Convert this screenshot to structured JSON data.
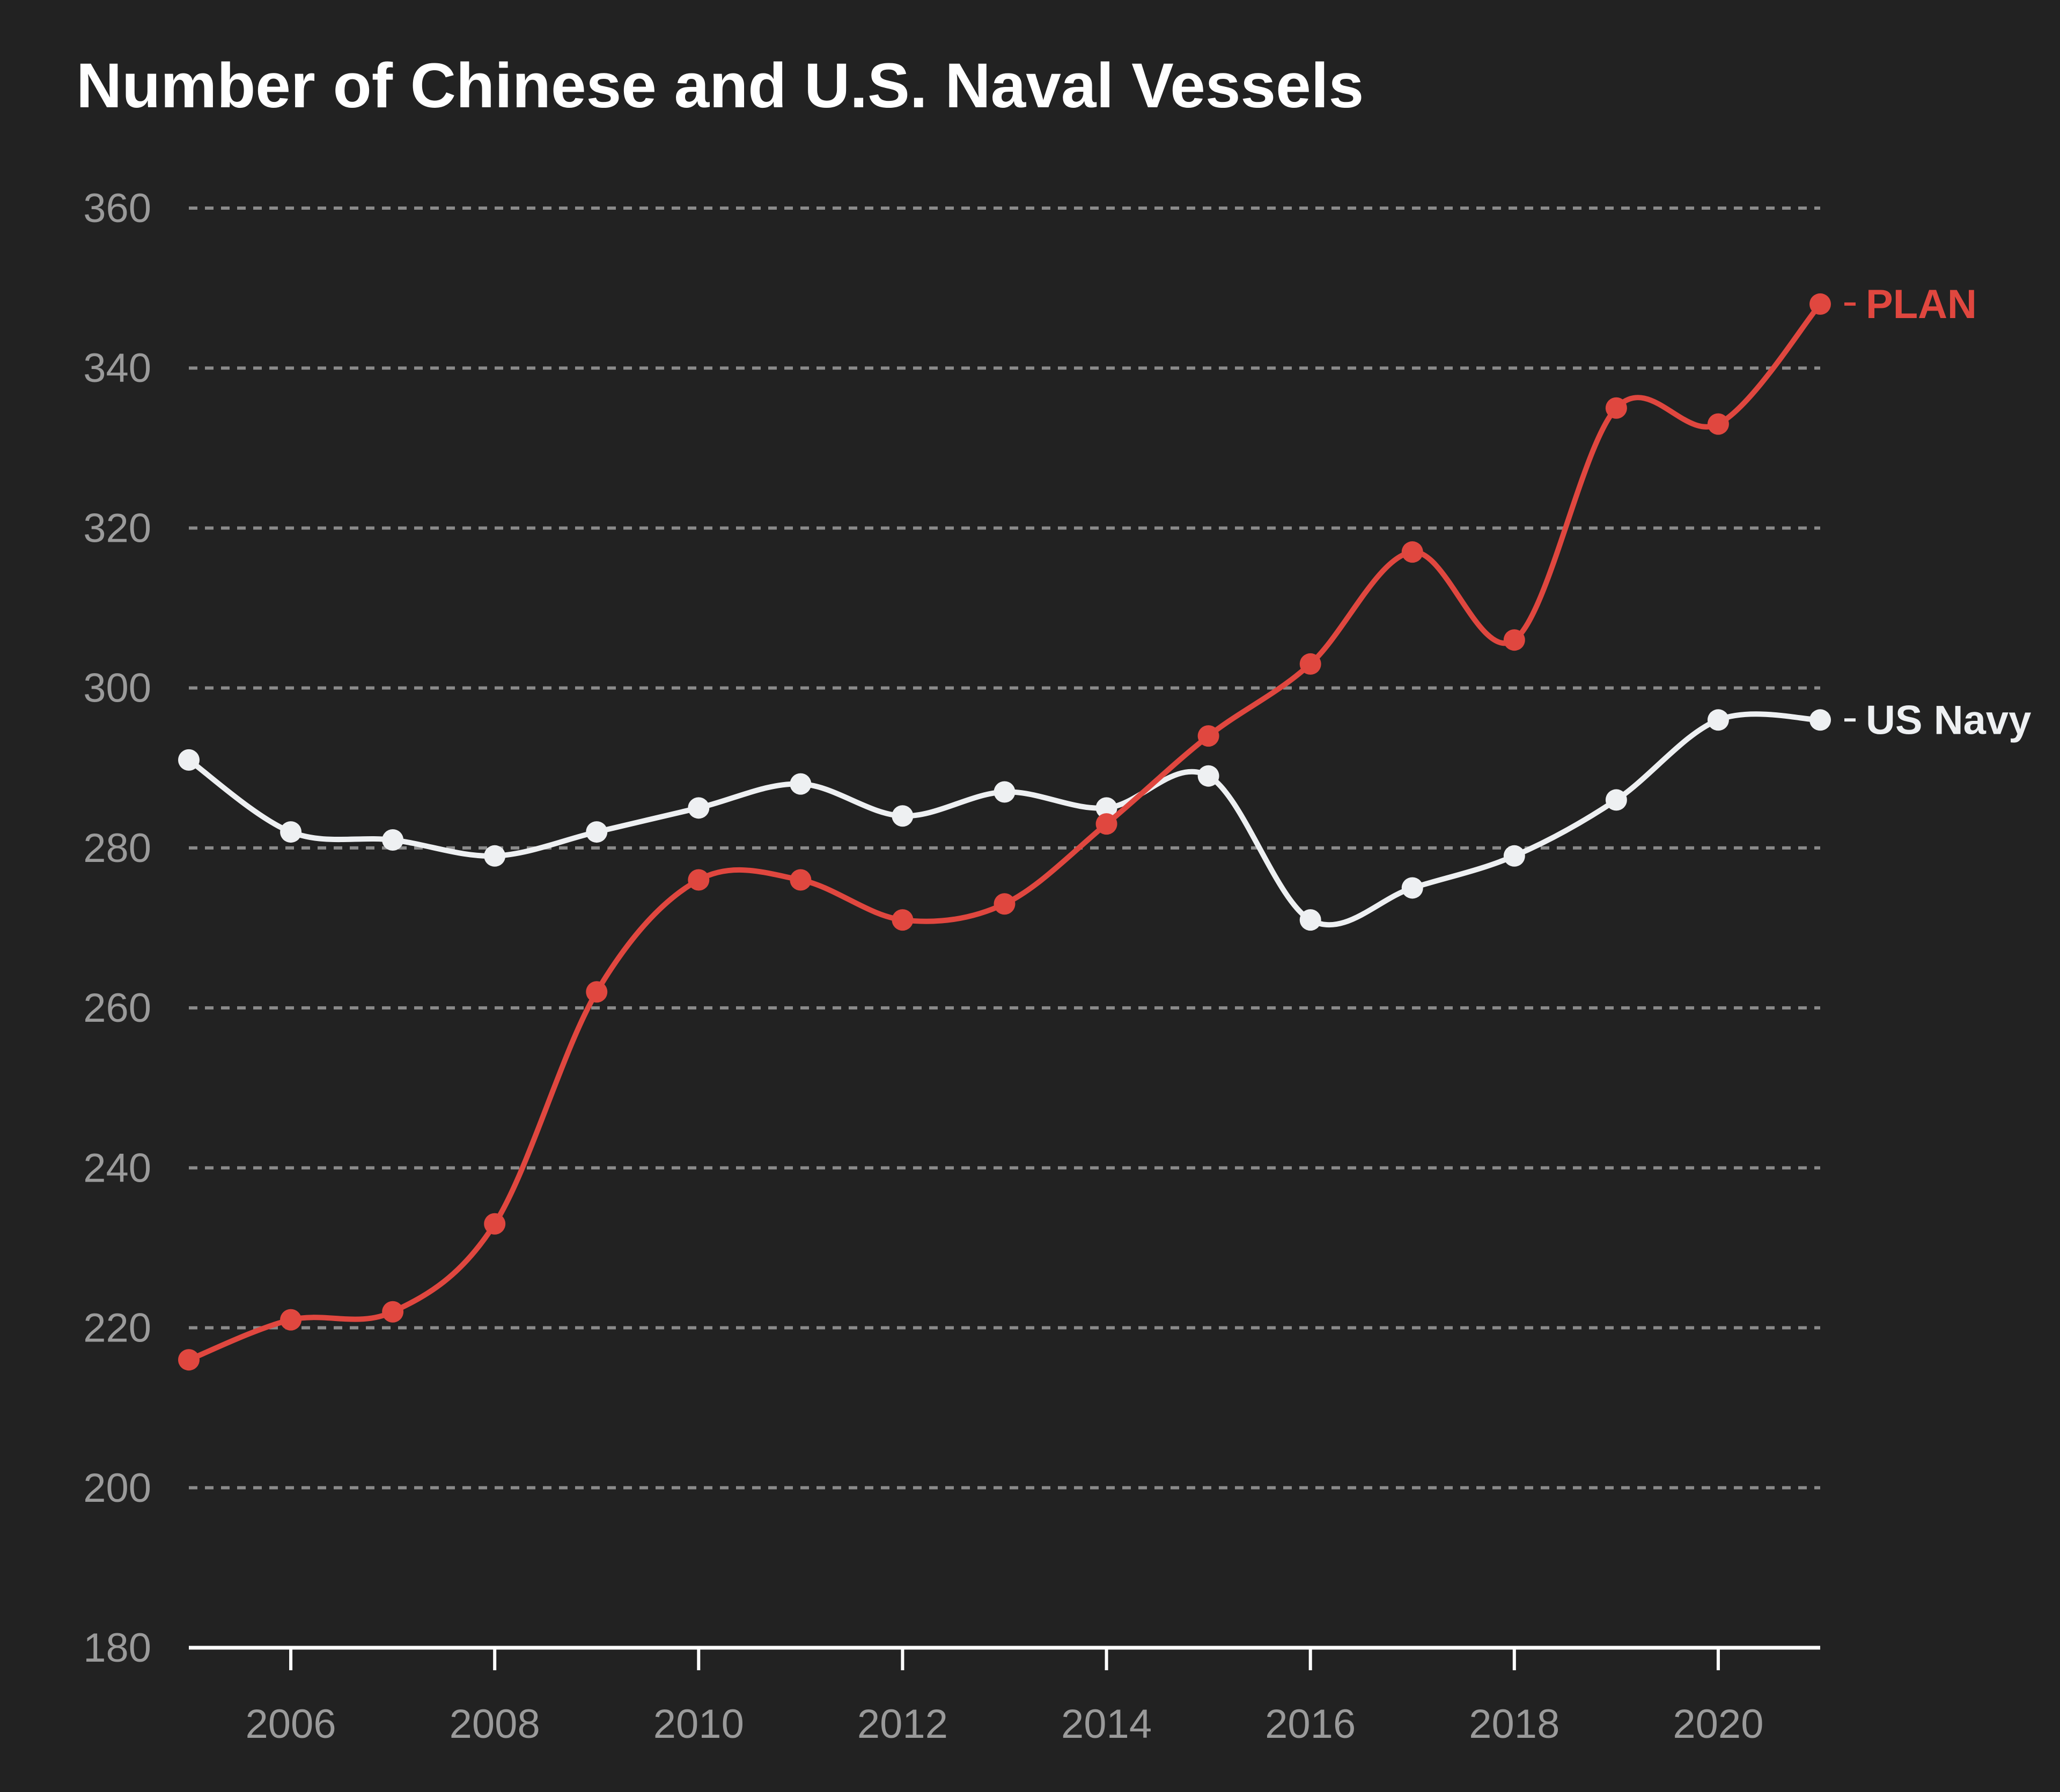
{
  "chart_data": {
    "type": "line",
    "title": "Number of Chinese and U.S. Naval Vessels",
    "xlabel": "",
    "ylabel": "",
    "x": [
      2005,
      2006,
      2007,
      2008,
      2009,
      2010,
      2011,
      2012,
      2013,
      2014,
      2015,
      2016,
      2017,
      2018,
      2019,
      2020,
      2021
    ],
    "x_ticks": [
      "2006",
      "2008",
      "2010",
      "2012",
      "2014",
      "2016",
      "2018",
      "2020"
    ],
    "y_ticks": [
      "180",
      "200",
      "220",
      "240",
      "260",
      "280",
      "300",
      "320",
      "340",
      "360"
    ],
    "ylim": [
      180,
      360
    ],
    "xlim": [
      2005,
      2021
    ],
    "grid": true,
    "legend": "inline labels at line ends",
    "series": [
      {
        "name": "PLAN",
        "color": "#e0473f",
        "values": [
          216,
          221,
          222,
          233,
          262,
          276,
          276,
          271,
          273,
          283,
          294,
          303,
          317,
          306,
          335,
          333,
          348
        ]
      },
      {
        "name": "US Navy",
        "color": "#eef0f2",
        "values": [
          291,
          282,
          281,
          279,
          282,
          285,
          288,
          284,
          287,
          285,
          289,
          271,
          275,
          279,
          286,
          296,
          296
        ]
      }
    ]
  }
}
